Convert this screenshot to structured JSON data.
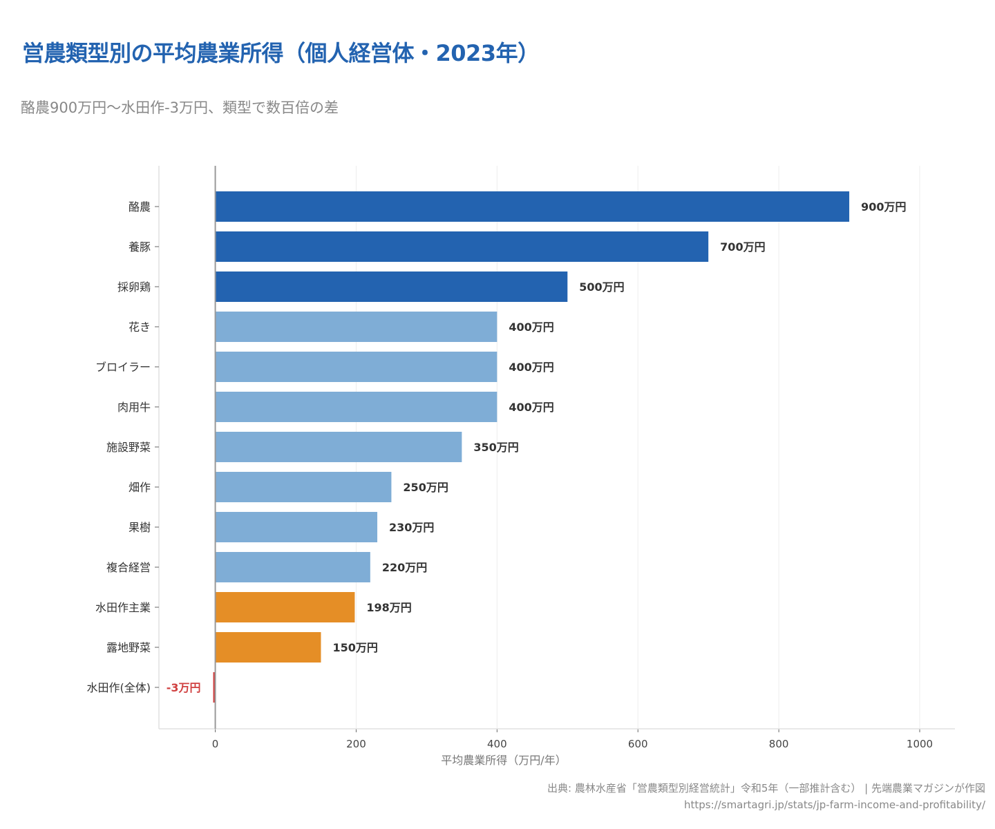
{
  "header": {
    "title": "営農類型別の平均農業所得（個人経営体・2023年）",
    "subtitle": "酪農900万円〜水田作-3万円、類型で数百倍の差"
  },
  "footer": {
    "source": "出典: 農林水産省「営農類型別経営統計」令和5年（一部推計含む） | 先端農業マガジンが作図",
    "url": "https://smartagri.jp/stats/jp-farm-income-and-profitability/"
  },
  "chart_data": {
    "type": "bar",
    "orientation": "horizontal",
    "title": "営農類型別の平均農業所得（個人経営体・2023年）",
    "xlabel": "平均農業所得（万円/年）",
    "ylabel": "",
    "xlim": [
      -80,
      1050
    ],
    "xticks": [
      0,
      200,
      400,
      600,
      800,
      1000
    ],
    "grid": "vertical",
    "categories": [
      "酪農",
      "養豚",
      "採卵鶏",
      "花き",
      "ブロイラー",
      "肉用牛",
      "施設野菜",
      "畑作",
      "果樹",
      "複合経営",
      "水田作主業",
      "露地野菜",
      "水田作(全体)"
    ],
    "values": [
      900,
      700,
      500,
      400,
      400,
      400,
      350,
      250,
      230,
      220,
      198,
      150,
      -3
    ],
    "data_labels": [
      "900万円",
      "700万円",
      "500万円",
      "400万円",
      "400万円",
      "400万円",
      "350万円",
      "250万円",
      "230万円",
      "220万円",
      "198万円",
      "150万円",
      "-3万円"
    ],
    "bar_colors": [
      "#2363b0",
      "#2363b0",
      "#2363b0",
      "#7fadd6",
      "#7fadd6",
      "#7fadd6",
      "#7fadd6",
      "#7fadd6",
      "#7fadd6",
      "#7fadd6",
      "#e58e26",
      "#e58e26",
      "#d04040"
    ],
    "label_colors": {
      "default": "#333333",
      "negative": "#d04040"
    }
  }
}
